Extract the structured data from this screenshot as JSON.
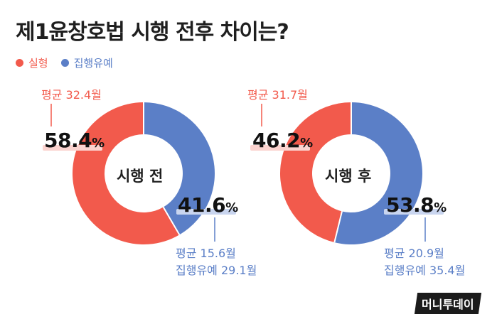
{
  "title": "제1윤창호법 시행 전후 차이는?",
  "legend": [
    {
      "label": "실형",
      "color": "#f25a4c"
    },
    {
      "label": "집행유예",
      "color": "#5b7fc7"
    }
  ],
  "colors": {
    "red": "#f25a4c",
    "blue": "#5b7fc7",
    "red_hl": "#fbd3cf",
    "blue_hl": "#c9d5ef"
  },
  "chart_data": [
    {
      "type": "pie",
      "center_label": "시행 전",
      "series": [
        {
          "name": "실형",
          "value": 58.4,
          "value_label": "58.4",
          "avg_label": "평균 32.4월"
        },
        {
          "name": "집행유예",
          "value": 41.6,
          "value_label": "41.6",
          "avg_label": "평균 15.6월",
          "extra_label": "집행유예 29.1월"
        }
      ]
    },
    {
      "type": "pie",
      "center_label": "시행 후",
      "series": [
        {
          "name": "실형",
          "value": 46.2,
          "value_label": "46.2",
          "avg_label": "평균 31.7월"
        },
        {
          "name": "집행유예",
          "value": 53.8,
          "value_label": "53.8",
          "avg_label": "평균 20.9월",
          "extra_label": "집행유예 35.4월"
        }
      ]
    }
  ],
  "unit": "%",
  "brand": "머니투데이"
}
